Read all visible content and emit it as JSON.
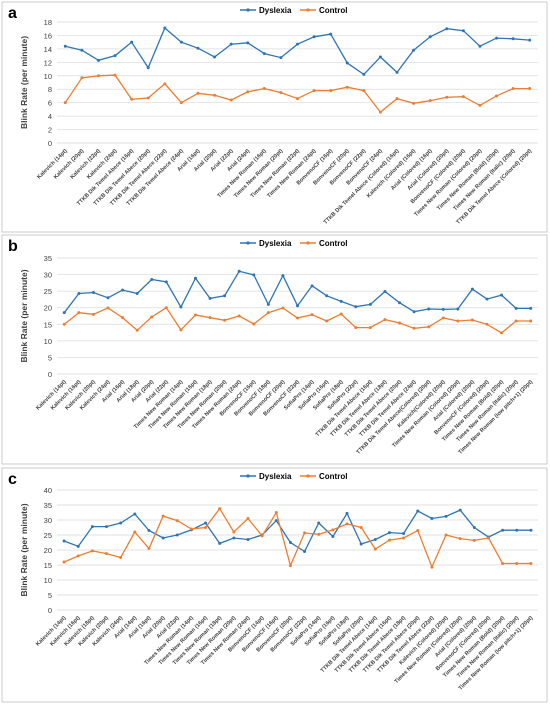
{
  "colors": {
    "dyslexia": "#2e75b6",
    "control": "#ed7d31",
    "grid": "#d9d9d9",
    "text": "#404040"
  },
  "chart_data": [
    {
      "type": "line",
      "panel_label": "a",
      "ylabel": "Blink Rate (per minute)",
      "ylim": [
        0,
        18
      ],
      "yticks": [
        0,
        2,
        4,
        6,
        8,
        10,
        12,
        14,
        16,
        18
      ],
      "grid": true,
      "legend": "top-center",
      "categories": [
        "Kalevich (14pt)",
        "Kalevich (20pt)",
        "Kalevich (22pt)",
        "Kalevich (24pt)",
        "TTKB Dik Temel Abece (16pt)",
        "TTKB Dik Temel Abece (20pt)",
        "TTKB Dik Temel Abece (22pt)",
        "TTKB Dik Temel Abece (24pt)",
        "Arial (16pt)",
        "Arial (20pt)",
        "Arial (22pt)",
        "Arial (24pt)",
        "Times New Roman (16pt)",
        "Times New Roman (20pt)",
        "Times New Roman (22pt)",
        "Times New Roman (24pt)",
        "BonvenoCF (16pt)",
        "BonvenoCF (20pt)",
        "BonvenoCF (22pt)",
        "BonvenoCF (24pt)",
        "TTKB Dik Temel Abece (Colored) (16pt)",
        "Kalevich (Colored) (16pt)",
        "Arial (Colored) (16pt)",
        "Arial (Colored) (20pt)",
        "BonvenoCF (Colored) (20pt)",
        "Times New Roman (Colored) (20pt)",
        "Times New Roman (Bold) (20pt)",
        "Times New Roman (Italic) (20pt)",
        "TTKB Dik Temel Abece (Colored) (20pt)"
      ],
      "series": [
        {
          "name": "Dyslexia",
          "values": [
            14.4,
            13.8,
            12.3,
            13.0,
            15.0,
            11.2,
            17.1,
            15.0,
            14.1,
            12.8,
            14.7,
            14.9,
            13.3,
            12.7,
            14.7,
            15.8,
            16.2,
            11.9,
            10.2,
            12.8,
            10.5,
            13.8,
            15.8,
            17.0,
            16.7,
            14.4,
            15.6,
            15.5,
            15.3
          ]
        },
        {
          "name": "Control",
          "values": [
            6.0,
            9.7,
            10.0,
            10.1,
            6.5,
            6.7,
            8.8,
            6.0,
            7.4,
            7.1,
            6.4,
            7.6,
            8.1,
            7.5,
            6.6,
            7.8,
            7.8,
            8.3,
            7.8,
            4.6,
            6.6,
            5.9,
            6.3,
            6.8,
            6.9,
            5.6,
            7.0,
            8.1,
            8.1
          ]
        }
      ]
    },
    {
      "type": "line",
      "panel_label": "b",
      "ylabel": "Blink Rate (per minute)",
      "ylim": [
        0,
        35
      ],
      "yticks": [
        0,
        5,
        10,
        15,
        20,
        25,
        30,
        35
      ],
      "grid": true,
      "legend": "top-center",
      "categories": [
        "Kalevich (14pt)",
        "Kalevich (16pt)",
        "Kalevich (20pt)",
        "Kalevich (24pt)",
        "Arial (16pt)",
        "Arial (18pt)",
        "Arial (20pt)",
        "Arial (22pt)",
        "Times New Roman (14pt)",
        "Times New Roman (16pt)",
        "Times New Roman (18pt)",
        "Times New Roman (20pt)",
        "Times New Roman (24pt)",
        "BonvenoCF (16pt)",
        "BonvenoCF (18pt)",
        "BonvenoCF (20pt)",
        "BonvenoCF (22pt)",
        "SofiaPro (14pt)",
        "SofiaPro (16pt)",
        "SofiaPro (18pt)",
        "SofiaPro (22pt)",
        "TTKB Dik Temel Abece (16pt)",
        "TTKB Dik Temel Abece (18pt)",
        "TTKB Dik Temel Abece (20pt)",
        "TTKB Dik Temel Abece (24pt)",
        "TTKB Dik Temel Abece(Colored) (20pt)",
        "Kalevich(Colored) (20pt)",
        "Times New Roman (Colored) (20pt)",
        "Arial (Colored) (20pt)",
        "BonvenoCF (Colored) (20pt)",
        "Times New Roman (Bold) (20pt)",
        "Times New Roman (Italic) (20pt)",
        "Times New Roman (low pitch+1) (20pt)"
      ],
      "series": [
        {
          "name": "Dyslexia",
          "values": [
            18.5,
            24.3,
            24.6,
            23.0,
            25.3,
            24.3,
            28.5,
            27.8,
            20.2,
            28.9,
            22.8,
            23.6,
            31.0,
            29.9,
            21.0,
            29.7,
            20.6,
            26.6,
            23.6,
            21.9,
            20.3,
            21.0,
            24.9,
            21.5,
            18.8,
            19.6,
            19.5,
            19.6,
            25.6,
            22.6,
            23.8,
            19.8,
            19.8
          ]
        },
        {
          "name": "Control",
          "values": [
            15.0,
            18.5,
            18.0,
            19.9,
            17.0,
            13.2,
            17.2,
            20.0,
            13.3,
            17.8,
            17.0,
            16.2,
            17.5,
            15.1,
            18.5,
            19.9,
            16.9,
            17.9,
            16.0,
            18.1,
            14.0,
            14.0,
            16.4,
            15.4,
            13.8,
            14.2,
            16.9,
            16.0,
            16.3,
            15.0,
            12.4,
            16.0,
            16.0
          ]
        }
      ]
    },
    {
      "type": "line",
      "panel_label": "c",
      "ylabel": "Blink Rate (per minute)",
      "ylim": [
        0,
        40
      ],
      "yticks": [
        0,
        5,
        10,
        15,
        20,
        25,
        30,
        35,
        40
      ],
      "grid": true,
      "legend": "top-center",
      "categories": [
        "Kalevich (14pt)",
        "Kalevich (16pt)",
        "Kalevich (18pt)",
        "Kalevich (20pt)",
        "Kalevich (24pt)",
        "Arial (14pt)",
        "Arial (16pt)",
        "Arial (20pt)",
        "Arial (22pt)",
        "Times New Roman (14pt)",
        "Times New Roman (16pt)",
        "Times New Roman (18pt)",
        "Times New Roman (20pt)",
        "Times New Roman (24pt)",
        "BonvenoCF (14pt)",
        "BonvenoCF (16pt)",
        "BonvenoCF (20pt)",
        "BonvenoCF (22pt)",
        "SofiaPro (14pt)",
        "SofiaPro (16pt)",
        "SofiaPro (18pt)",
        "SofiaPro (20pt)",
        "TTKB Dik Temel Abece (14pt)",
        "TTKB Dik Temel Abece (16pt)",
        "TTKB Dik Temel Abece (18pt)",
        "TTKB Dik Temel Abece (20pt)",
        "TTKB Dik Temel Abece (22pt)",
        "Kalevich (Colored) (20pt)",
        "Times New Roman (Colored) (20pt)",
        "Arial (Colored) (20pt)",
        "BonvenoCF (Colored) (20pt)",
        "Times New Roman (Bold) (20pt)",
        "Times New Roman (Italic) (20pt)",
        "Times New Roman (low pitch+1) (20pt)"
      ],
      "series": [
        {
          "name": "Dyslexia",
          "values": [
            23.0,
            21.2,
            27.8,
            27.8,
            29.0,
            32.0,
            26.5,
            24.0,
            25.0,
            26.7,
            29.0,
            22.2,
            24.0,
            23.5,
            25.0,
            29.8,
            22.5,
            19.5,
            29.0,
            24.5,
            32.2,
            22.0,
            23.5,
            25.8,
            25.5,
            33.0,
            30.5,
            31.2,
            33.3,
            27.5,
            24.3,
            26.6,
            26.6,
            26.6
          ]
        },
        {
          "name": "Control",
          "values": [
            16.0,
            18.0,
            19.7,
            18.8,
            17.5,
            26.0,
            20.5,
            31.3,
            29.8,
            27.0,
            27.5,
            33.8,
            26.0,
            30.5,
            24.7,
            32.5,
            14.8,
            25.7,
            25.2,
            26.7,
            28.7,
            27.5,
            20.3,
            23.3,
            24.0,
            26.5,
            14.3,
            25.0,
            23.8,
            23.2,
            24.0,
            15.5,
            15.5,
            15.5
          ]
        }
      ]
    }
  ]
}
